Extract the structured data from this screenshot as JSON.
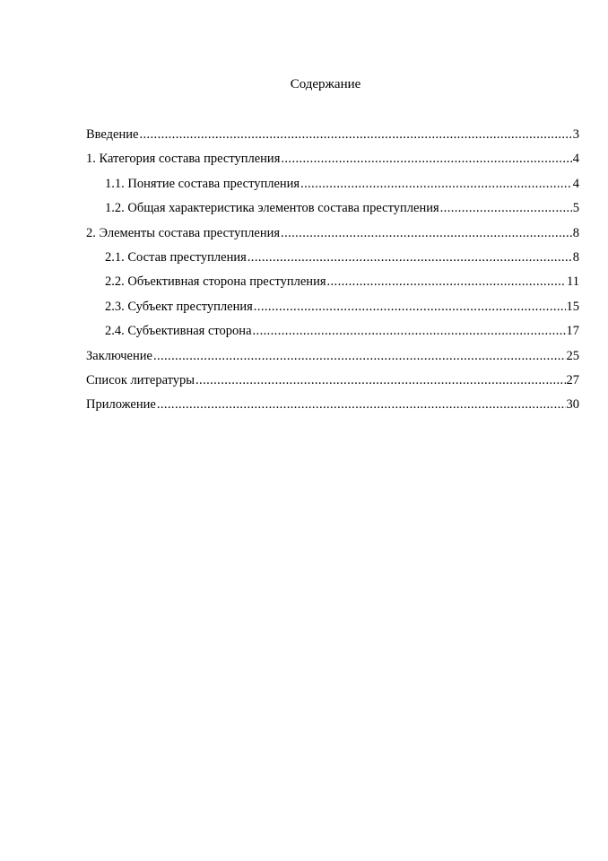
{
  "title": "Содержание",
  "toc": [
    {
      "label": "Введение",
      "page": "3",
      "level": 1
    },
    {
      "label": "1. Категория состава преступления",
      "page": "4",
      "level": 1
    },
    {
      "label": "1.1. Понятие состава преступления",
      "page": "4",
      "level": 2
    },
    {
      "label": "1.2. Общая характеристика элементов состава преступления",
      "page": "5",
      "level": 2
    },
    {
      "label": "2. Элементы состава преступления",
      "page": "8",
      "level": 1
    },
    {
      "label": "2.1. Состав преступления",
      "page": "8",
      "level": 2
    },
    {
      "label": "2.2. Объективная сторона преступления",
      "page": "11",
      "level": 2
    },
    {
      "label": "2.3. Субъект преступления",
      "page": "15",
      "level": 2
    },
    {
      "label": "2.4. Субъективная сторона",
      "page": "17",
      "level": 2
    },
    {
      "label": "Заключение",
      "page": "25",
      "level": 1
    },
    {
      "label": "Список литературы",
      "page": "27",
      "level": 1
    },
    {
      "label": "Приложение",
      "page": "30",
      "level": 1
    }
  ]
}
